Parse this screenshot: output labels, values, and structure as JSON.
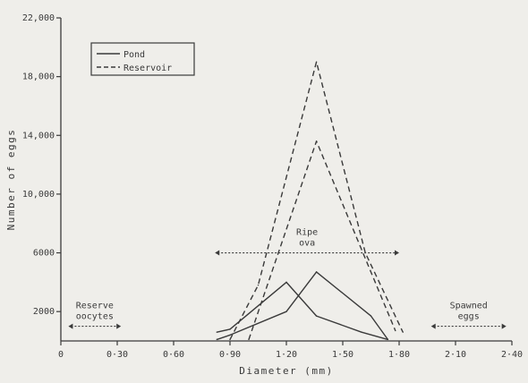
{
  "chart_data": {
    "type": "line",
    "xlabel": "Diameter (mm)",
    "ylabel": "Number of eggs",
    "xlim": [
      0,
      2.4
    ],
    "ylim": [
      0,
      22000
    ],
    "x_ticks": [
      {
        "value": 0,
        "label": "0"
      },
      {
        "value": 0.3,
        "label": "0·30"
      },
      {
        "value": 0.6,
        "label": "0·60"
      },
      {
        "value": 0.9,
        "label": "0·90"
      },
      {
        "value": 1.2,
        "label": "1·20"
      },
      {
        "value": 1.5,
        "label": "1·50"
      },
      {
        "value": 1.8,
        "label": "1·80"
      },
      {
        "value": 2.1,
        "label": "2·10"
      },
      {
        "value": 2.4,
        "label": "2·40"
      }
    ],
    "y_ticks": [
      {
        "value": 2000,
        "label": "2000"
      },
      {
        "value": 6000,
        "label": "6000"
      },
      {
        "value": 10000,
        "label": "10,000"
      },
      {
        "value": 14000,
        "label": "14,000"
      },
      {
        "value": 18000,
        "label": "18,000"
      },
      {
        "value": 22000,
        "label": "22,000"
      }
    ],
    "legend": {
      "position": "top-left",
      "items": [
        {
          "label": "Pond",
          "style": "solid"
        },
        {
          "label": "Reservoir",
          "style": "dashed"
        }
      ]
    },
    "series": [
      {
        "name": "Pond",
        "style": "solid",
        "x": [
          0.83,
          0.9,
          1.2,
          1.36,
          1.6,
          1.74
        ],
        "y": [
          600,
          800,
          4000,
          1700,
          600,
          100
        ]
      },
      {
        "name": "Pond",
        "style": "solid",
        "x": [
          0.83,
          0.9,
          1.2,
          1.36,
          1.65,
          1.74
        ],
        "y": [
          100,
          400,
          2000,
          4700,
          1700,
          100
        ]
      },
      {
        "name": "Reservoir",
        "style": "dashed",
        "x": [
          0.9,
          1.05,
          1.36,
          1.62,
          1.82
        ],
        "y": [
          100,
          3800,
          19000,
          6000,
          600
        ]
      },
      {
        "name": "Reservoir",
        "style": "dashed",
        "x": [
          1.0,
          1.36,
          1.78
        ],
        "y": [
          100,
          13600,
          700
        ]
      }
    ],
    "annotations": [
      {
        "label_lines": [
          "Ripe",
          "ova"
        ],
        "range": [
          0.82,
          1.8
        ],
        "y": 6000
      },
      {
        "label_lines": [
          "Reserve",
          "oocytes"
        ],
        "range": [
          0.04,
          0.32
        ],
        "y": 1000
      },
      {
        "label_lines": [
          "Spawned",
          "eggs"
        ],
        "range": [
          1.97,
          2.37
        ],
        "y": 1000
      }
    ]
  }
}
